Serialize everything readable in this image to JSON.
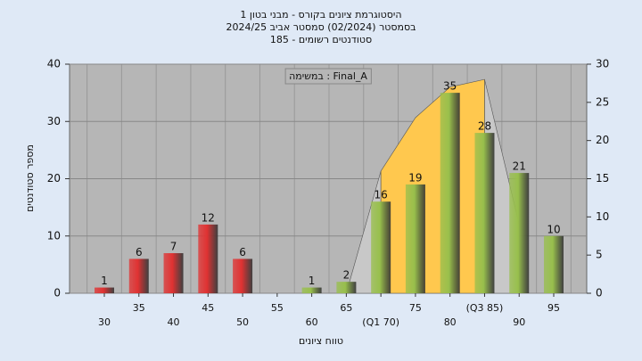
{
  "chart_data": {
    "type": "bar",
    "title": [
      "היסטוגרמת ציונים בקורס - מבני בטון 1",
      "בסמסטר  (02/2024)  סמסטר אביב 2024/25",
      "סטודנטים רשומים - 185"
    ],
    "annotation": "במשימה : Final_A",
    "x_label": "טווח ציונים",
    "y_label": "מספר סטודנטים",
    "categories": [
      "30",
      "35",
      "40",
      "45",
      "50",
      "55",
      "60",
      "65",
      "(Q1 70)",
      "75",
      "80",
      "(Q3 85)",
      "90",
      "95"
    ],
    "values": [
      1,
      6,
      7,
      12,
      6,
      null,
      1,
      2,
      16,
      19,
      35,
      28,
      21,
      10
    ],
    "colors": [
      "#e03232",
      "#e03232",
      "#e03232",
      "#e03232",
      "#e03232",
      "#e03232",
      "#98bf4c",
      "#98bf4c",
      "#98bf4c",
      "#98bf4c",
      "#98bf4c",
      "#98bf4c",
      "#98bf4c",
      "#98bf4c"
    ],
    "area_series": [
      {
        "axis": "y2",
        "color": "#c8c8c8",
        "values": [
          null,
          null,
          null,
          null,
          null,
          null,
          null,
          0,
          16,
          null,
          null,
          28,
          9,
          null
        ]
      },
      {
        "axis": "y2",
        "color": "#ffc84e",
        "values": [
          null,
          null,
          null,
          null,
          null,
          null,
          null,
          null,
          16,
          23,
          27,
          28,
          null,
          null
        ]
      }
    ],
    "ylim": [
      0,
      40
    ],
    "yticks": [
      0,
      10,
      20,
      30,
      40
    ],
    "y2lim": [
      0,
      30
    ],
    "y2ticks": [
      0,
      5,
      10,
      15,
      20,
      25,
      30
    ],
    "grid": true
  }
}
